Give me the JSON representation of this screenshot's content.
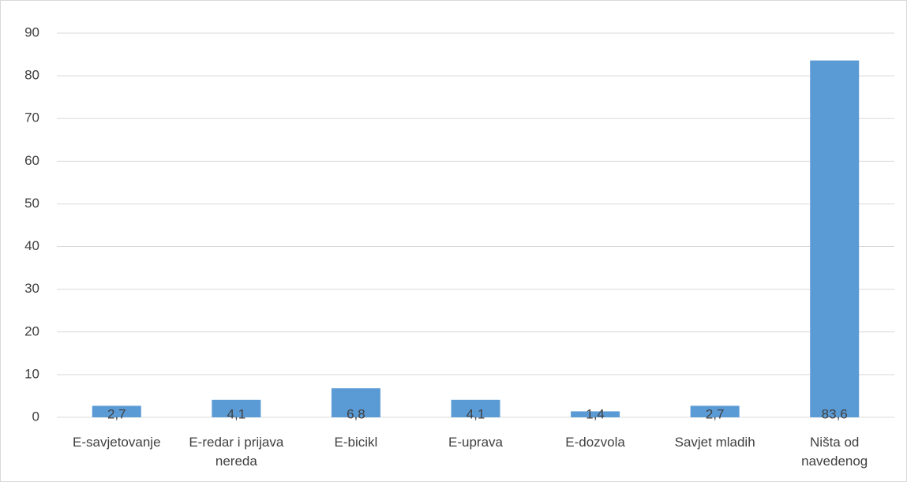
{
  "chart_data": {
    "type": "bar",
    "categories": [
      "E-savjetovanje",
      "E-redar i prijava nereda",
      "E-bicikl",
      "E-uprava",
      "E-dozvola",
      "Savjet mladih",
      "Ništa od navedenog"
    ],
    "values": [
      2.7,
      4.1,
      6.8,
      4.1,
      1.4,
      2.7,
      83.6
    ],
    "value_labels": [
      "2,7",
      "4,1",
      "6,8",
      "4,1",
      "1,4",
      "2,7",
      "83,6"
    ],
    "color": "#5b9bd5",
    "ylim": [
      0,
      90
    ],
    "yticks": [
      0,
      10,
      20,
      30,
      40,
      50,
      60,
      70,
      80,
      90
    ],
    "grid": true
  }
}
